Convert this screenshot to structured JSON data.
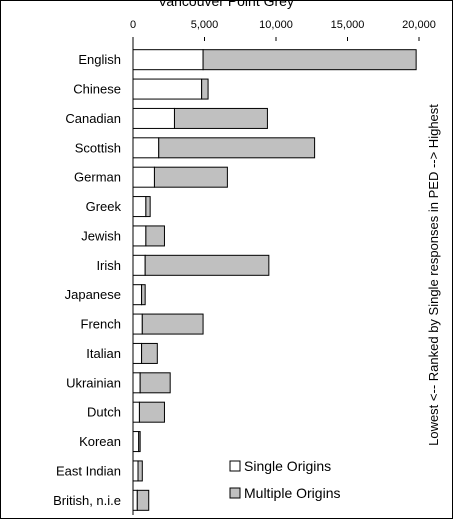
{
  "chart_data": {
    "type": "bar",
    "orientation": "horizontal",
    "stacked": true,
    "title": "Vancouver Point Grey",
    "xlabel": "",
    "ylabel": "Lowest <-- Ranked by Single responses in PED --> Highest",
    "xlim": [
      0,
      20000
    ],
    "x_ticks": [
      "0",
      "5,000",
      "10,000",
      "15,000",
      "20,000"
    ],
    "x_tick_values": [
      0,
      5000,
      10000,
      15000,
      20000
    ],
    "grid": false,
    "legend_position": "bottom-right",
    "categories": [
      "English",
      "Chinese",
      "Canadian",
      "Scottish",
      "German",
      "Greek",
      "Jewish",
      "Irish",
      "Japanese",
      "French",
      "Italian",
      "Ukrainian",
      "Dutch",
      "Korean",
      "East Indian",
      "British, n.i.e"
    ],
    "series": [
      {
        "name": "Single Origins",
        "color": "#ffffff",
        "values": [
          4900,
          4800,
          2900,
          1800,
          1500,
          900,
          900,
          850,
          600,
          650,
          600,
          500,
          450,
          400,
          350,
          300
        ]
      },
      {
        "name": "Multiple Origins",
        "color": "#c0c0c0",
        "values": [
          14900,
          450,
          6500,
          10900,
          5100,
          300,
          1300,
          8650,
          250,
          4250,
          1100,
          2100,
          1750,
          100,
          300,
          800
        ]
      }
    ]
  }
}
